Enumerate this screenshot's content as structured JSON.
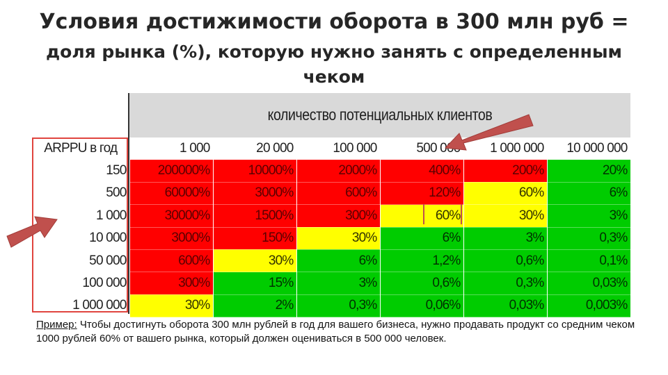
{
  "title": {
    "line1": "Условия достижимости оборота в 300 млн руб =",
    "line2": "доля рынка (%), которую нужно занять с определенным",
    "line3": "чеком"
  },
  "table": {
    "group_header": "количество потенциальных клиентов",
    "corner_label": "ARPPU в год",
    "columns": [
      "1 000",
      "20 000",
      "100 000",
      "500 000",
      "1 000 000",
      "10 000 000"
    ],
    "rows": [
      {
        "label": "150",
        "cells": [
          {
            "v": "200000%",
            "c": "red"
          },
          {
            "v": "10000%",
            "c": "red"
          },
          {
            "v": "2000%",
            "c": "red"
          },
          {
            "v": "400%",
            "c": "red"
          },
          {
            "v": "200%",
            "c": "red"
          },
          {
            "v": "20%",
            "c": "green"
          }
        ]
      },
      {
        "label": "500",
        "cells": [
          {
            "v": "60000%",
            "c": "red"
          },
          {
            "v": "3000%",
            "c": "red"
          },
          {
            "v": "600%",
            "c": "red"
          },
          {
            "v": "120%",
            "c": "red"
          },
          {
            "v": "60%",
            "c": "yellow"
          },
          {
            "v": "6%",
            "c": "green"
          }
        ]
      },
      {
        "label": "1 000",
        "cells": [
          {
            "v": "30000%",
            "c": "red"
          },
          {
            "v": "1500%",
            "c": "red"
          },
          {
            "v": "300%",
            "c": "red"
          },
          {
            "v": "60%",
            "c": "yellow"
          },
          {
            "v": "30%",
            "c": "yellow"
          },
          {
            "v": "3%",
            "c": "green"
          }
        ]
      },
      {
        "label": "10 000",
        "cells": [
          {
            "v": "3000%",
            "c": "red"
          },
          {
            "v": "150%",
            "c": "red"
          },
          {
            "v": "30%",
            "c": "yellow"
          },
          {
            "v": "6%",
            "c": "green"
          },
          {
            "v": "3%",
            "c": "green"
          },
          {
            "v": "0,3%",
            "c": "green"
          }
        ]
      },
      {
        "label": "50 000",
        "cells": [
          {
            "v": "600%",
            "c": "red"
          },
          {
            "v": "30%",
            "c": "yellow"
          },
          {
            "v": "6%",
            "c": "green"
          },
          {
            "v": "1,2%",
            "c": "green"
          },
          {
            "v": "0,6%",
            "c": "green"
          },
          {
            "v": "0,1%",
            "c": "green"
          }
        ]
      },
      {
        "label": "100 000",
        "cells": [
          {
            "v": "300%",
            "c": "red"
          },
          {
            "v": "15%",
            "c": "green"
          },
          {
            "v": "3%",
            "c": "green"
          },
          {
            "v": "0,6%",
            "c": "green"
          },
          {
            "v": "0,3%",
            "c": "green"
          },
          {
            "v": "0,03%",
            "c": "green"
          }
        ]
      },
      {
        "label": "1 000 000",
        "cells": [
          {
            "v": "30%",
            "c": "yellow"
          },
          {
            "v": "2%",
            "c": "green"
          },
          {
            "v": "0,3%",
            "c": "green"
          },
          {
            "v": "0,06%",
            "c": "green"
          },
          {
            "v": "0,03%",
            "c": "green"
          },
          {
            "v": "0,003%",
            "c": "green"
          }
        ]
      }
    ]
  },
  "note": {
    "lead": "Пример:",
    "text": " Чтобы достигнуть оборота 300 млн рублей в год для вашего бизнеса, нужно продавать продукт со средним чеком 1000 рублей 60% от вашего рынка, который должен оцениваться в 500 000 человек."
  },
  "colors": {
    "red": "#ff0000",
    "yellow": "#ffff00",
    "green": "#00cc00",
    "arrow": "#c0504d"
  },
  "icons": [
    "arrow-to-column-icon",
    "arrow-to-row-icon"
  ]
}
